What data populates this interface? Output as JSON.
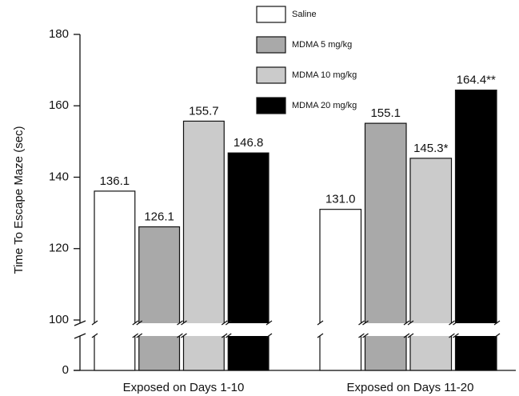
{
  "chart_data": {
    "type": "bar",
    "y_label": "Time To Escape Maze (sec)",
    "categories": [
      "Exposed  on  Days 1-10",
      "Exposed  on  Days 11-20"
    ],
    "series": [
      {
        "name": "Saline",
        "color": "#ffffff",
        "values": [
          136.1,
          131.0
        ],
        "value_labels": [
          "136.1",
          "131.0"
        ]
      },
      {
        "name": "MDMA 5 mg/kg",
        "color": "#a9a9a9",
        "values": [
          126.1,
          155.1
        ],
        "value_labels": [
          "126.1",
          "155.1"
        ]
      },
      {
        "name": "MDMA 10 mg/kg",
        "color": "#cbcbcb",
        "values": [
          155.7,
          145.3
        ],
        "value_labels": [
          "155.7",
          "145.3*"
        ]
      },
      {
        "name": "MDMA 20 mg/kg",
        "color": "#000000",
        "values": [
          146.8,
          164.4
        ],
        "value_labels": [
          "146.8",
          "164.4**"
        ]
      }
    ],
    "ylim": [
      0,
      180
    ],
    "yticks": [
      0,
      100,
      120,
      140,
      160,
      180
    ],
    "axis_break": true,
    "grid": false,
    "legend": "top"
  }
}
